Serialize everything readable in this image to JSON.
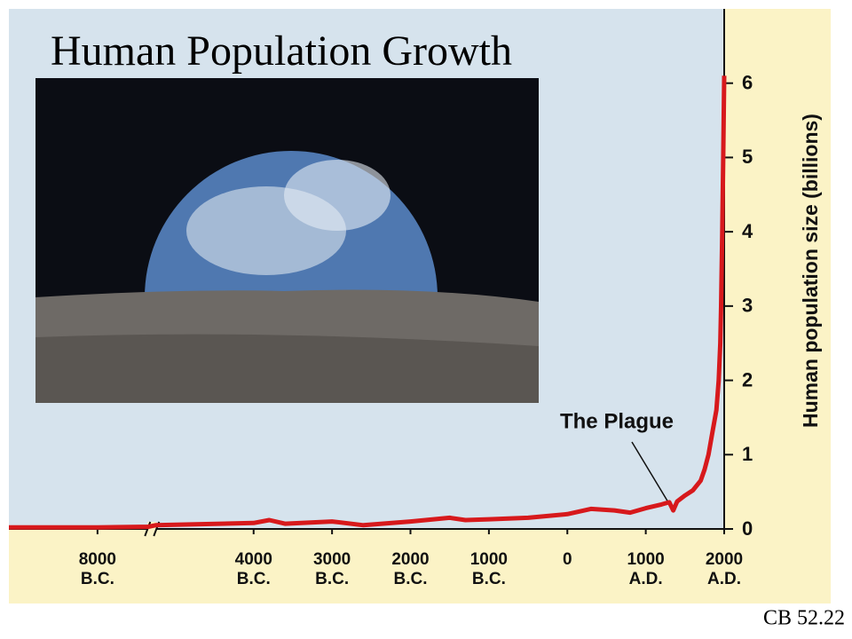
{
  "chart_data": {
    "type": "line",
    "title": "Human Population Growth",
    "y_label": "Human population size (billions)",
    "annotation": "The Plague",
    "x": [
      -9130,
      -8000,
      -7350,
      -5250,
      -4000,
      -3800,
      -3600,
      -3000,
      -2600,
      -2000,
      -1500,
      -1300,
      -1000,
      -500,
      0,
      300,
      600,
      800,
      1000,
      1200,
      1300,
      1350,
      1400,
      1500,
      1600,
      1700,
      1750,
      1800,
      1850,
      1900,
      1930,
      1950,
      1960,
      1975,
      1987,
      2000
    ],
    "series": [
      {
        "color": "#d7191c",
        "values": [
          0.02,
          0.02,
          0.03,
          0.05,
          0.08,
          0.12,
          0.07,
          0.1,
          0.05,
          0.1,
          0.15,
          0.12,
          0.13,
          0.15,
          0.2,
          0.27,
          0.25,
          0.22,
          0.28,
          0.33,
          0.36,
          0.25,
          0.37,
          0.45,
          0.52,
          0.65,
          0.8,
          1.0,
          1.3,
          1.6,
          2.0,
          2.5,
          3.0,
          4.0,
          5.0,
          6.1
        ]
      }
    ],
    "xlim": [
      -9130,
      2000
    ],
    "x_break": [
      -7350,
      -5250
    ],
    "xticks": [
      {
        "value": -8000,
        "label": "8000 B.C."
      },
      {
        "value": -4000,
        "label": "4000 B.C."
      },
      {
        "value": -3000,
        "label": "3000 B.C."
      },
      {
        "value": -2000,
        "label": "2000 B.C."
      },
      {
        "value": -1000,
        "label": "1000 B.C."
      },
      0,
      {
        "value": 1000,
        "label": "1000 A.D."
      },
      {
        "value": 2000,
        "label": "2000 A.D."
      }
    ],
    "ylim": [
      0,
      7
    ],
    "yticks": [
      0,
      1,
      2,
      3,
      4,
      5,
      6
    ]
  },
  "footer": "CB 52.22"
}
